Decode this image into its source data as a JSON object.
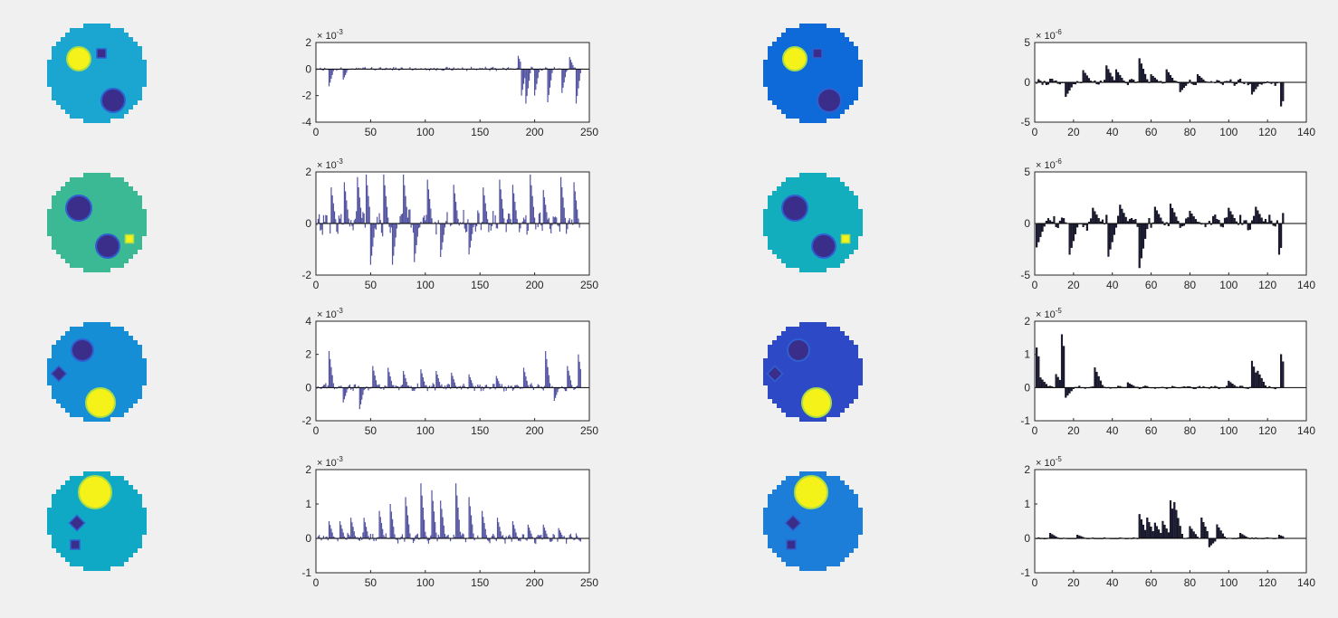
{
  "colors": {
    "figure_bg": "#f0f0f0",
    "axes_bg": "#ffffff",
    "axes_edge": "#262626",
    "phantom_inclusion_dark": "#3a2e8a",
    "phantom_inclusion_yellow": "#f5f21a",
    "bar_left": "#5353a0",
    "bar_right": "#1c1c3c"
  },
  "phantoms": [
    {
      "name": "phantom-1-left",
      "background": "#1aa6d1"
    },
    {
      "name": "phantom-1-right",
      "background": "#0e6ad8"
    },
    {
      "name": "phantom-2-left",
      "background": "#3bb894"
    },
    {
      "name": "phantom-2-right",
      "background": "#12aebe"
    },
    {
      "name": "phantom-3-left",
      "background": "#168ed6"
    },
    {
      "name": "phantom-3-right",
      "background": "#2e49c6"
    },
    {
      "name": "phantom-4-left",
      "background": "#0fa9c6"
    },
    {
      "name": "phantom-4-right",
      "background": "#1c7ed8"
    }
  ],
  "chart_data": [
    {
      "type": "bar",
      "name": "row1-left",
      "xlim": [
        0,
        250
      ],
      "ylim": [
        -4,
        2
      ],
      "exponent": "-3",
      "xticks": [
        "0",
        "50",
        "100",
        "150",
        "200",
        "250"
      ],
      "yticks": [
        "-4",
        "-2",
        "0",
        "2"
      ],
      "n": 242,
      "profile": {
        "base": [
          0.25,
          0.1
        ],
        "spikes": [
          [
            12,
            -1.3
          ],
          [
            25,
            -0.8
          ],
          [
            185,
            1.0
          ],
          [
            188,
            -2.0
          ],
          [
            192,
            -2.6
          ],
          [
            200,
            -2.0
          ],
          [
            212,
            -2.5
          ],
          [
            225,
            -1.8
          ],
          [
            232,
            0.9
          ],
          [
            238,
            -2.6
          ]
        ]
      }
    },
    {
      "type": "bar",
      "name": "row1-right",
      "xlim": [
        0,
        140
      ],
      "ylim": [
        -5,
        5
      ],
      "exponent": "-6",
      "xticks": [
        "0",
        "20",
        "40",
        "60",
        "80",
        "100",
        "120",
        "140"
      ],
      "yticks": [
        "-5",
        "0",
        "5"
      ],
      "n": 128,
      "profile": {
        "base": [
          0.6,
          0.3
        ],
        "spikes": [
          [
            16,
            -1.8
          ],
          [
            25,
            1.5
          ],
          [
            37,
            2.1
          ],
          [
            42,
            1.6
          ],
          [
            54,
            3.0
          ],
          [
            60,
            1.0
          ],
          [
            68,
            1.6
          ],
          [
            75,
            -1.2
          ],
          [
            84,
            1.0
          ],
          [
            112,
            -1.5
          ],
          [
            127,
            -3.0
          ]
        ]
      }
    },
    {
      "type": "bar",
      "name": "row2-left",
      "xlim": [
        0,
        250
      ],
      "ylim": [
        -2,
        2
      ],
      "exponent": "-3",
      "xticks": [
        "0",
        "50",
        "100",
        "150",
        "200",
        "250"
      ],
      "yticks": [
        "-2",
        "0",
        "2"
      ],
      "n": 242,
      "profile": {
        "base": [
          0.6,
          0.5
        ],
        "spikes": [
          [
            14,
            1.4
          ],
          [
            26,
            1.6
          ],
          [
            38,
            1.8
          ],
          [
            46,
            1.9
          ],
          [
            50,
            -1.6
          ],
          [
            62,
            1.9
          ],
          [
            70,
            -1.6
          ],
          [
            80,
            1.9
          ],
          [
            90,
            -1.5
          ],
          [
            102,
            1.7
          ],
          [
            114,
            -1.3
          ],
          [
            126,
            1.5
          ],
          [
            140,
            -1.2
          ],
          [
            153,
            1.4
          ],
          [
            168,
            1.7
          ],
          [
            180,
            1.5
          ],
          [
            196,
            1.9
          ],
          [
            208,
            1.3
          ],
          [
            224,
            1.8
          ],
          [
            236,
            1.6
          ]
        ]
      }
    },
    {
      "type": "bar",
      "name": "row2-right",
      "xlim": [
        0,
        140
      ],
      "ylim": [
        -5,
        5
      ],
      "exponent": "-6",
      "xticks": [
        "0",
        "20",
        "40",
        "60",
        "80",
        "100",
        "120",
        "140"
      ],
      "yticks": [
        "-5",
        "0",
        "5"
      ],
      "n": 128,
      "profile": {
        "base": [
          1.0,
          0.7
        ],
        "spikes": [
          [
            1,
            -2.3
          ],
          [
            18,
            -3.0
          ],
          [
            30,
            1.5
          ],
          [
            38,
            -3.2
          ],
          [
            44,
            1.8
          ],
          [
            54,
            -4.3
          ],
          [
            62,
            1.6
          ],
          [
            70,
            1.9
          ],
          [
            80,
            1.2
          ],
          [
            100,
            1.5
          ],
          [
            114,
            1.6
          ],
          [
            126,
            -3.0
          ],
          [
            128,
            1.0
          ]
        ]
      }
    },
    {
      "type": "bar",
      "name": "row3-left",
      "xlim": [
        0,
        250
      ],
      "ylim": [
        -2,
        4
      ],
      "exponent": "-3",
      "xticks": [
        "0",
        "50",
        "100",
        "150",
        "200",
        "250"
      ],
      "yticks": [
        "-2",
        "0",
        "2",
        "4"
      ],
      "n": 242,
      "profile": {
        "base": [
          0.35,
          0.2
        ],
        "spikes": [
          [
            12,
            2.2
          ],
          [
            25,
            -0.9
          ],
          [
            40,
            -1.3
          ],
          [
            52,
            1.3
          ],
          [
            66,
            1.2
          ],
          [
            80,
            1.0
          ],
          [
            96,
            1.1
          ],
          [
            110,
            1.0
          ],
          [
            124,
            0.9
          ],
          [
            140,
            0.8
          ],
          [
            165,
            0.7
          ],
          [
            190,
            1.2
          ],
          [
            210,
            2.2
          ],
          [
            218,
            -0.8
          ],
          [
            230,
            1.3
          ],
          [
            240,
            2.0
          ]
        ]
      }
    },
    {
      "type": "bar",
      "name": "row3-right",
      "xlim": [
        0,
        140
      ],
      "ylim": [
        -1,
        2
      ],
      "exponent": "-5",
      "xticks": [
        "0",
        "20",
        "40",
        "60",
        "80",
        "100",
        "120",
        "140"
      ],
      "yticks": [
        "-1",
        "0",
        "1",
        "2"
      ],
      "n": 128,
      "profile": {
        "base": [
          0.06,
          0.04
        ],
        "spikes": [
          [
            1,
            1.2
          ],
          [
            3,
            0.3
          ],
          [
            11,
            0.4
          ],
          [
            14,
            1.6
          ],
          [
            16,
            -0.3
          ],
          [
            31,
            0.6
          ],
          [
            48,
            0.15
          ],
          [
            100,
            0.2
          ],
          [
            112,
            0.8
          ],
          [
            115,
            0.5
          ],
          [
            127,
            1.0
          ]
        ]
      }
    },
    {
      "type": "bar",
      "name": "row4-left",
      "xlim": [
        0,
        250
      ],
      "ylim": [
        -1,
        2
      ],
      "exponent": "-3",
      "xticks": [
        "0",
        "50",
        "100",
        "150",
        "200",
        "250"
      ],
      "yticks": [
        "-1",
        "0",
        "1",
        "2"
      ],
      "n": 242,
      "profile": {
        "base": [
          0.2,
          0.15
        ],
        "spikes": [
          [
            12,
            0.5
          ],
          [
            22,
            0.5
          ],
          [
            32,
            0.6
          ],
          [
            44,
            0.6
          ],
          [
            58,
            0.8
          ],
          [
            68,
            1.0
          ],
          [
            82,
            1.2
          ],
          [
            96,
            1.6
          ],
          [
            106,
            1.4
          ],
          [
            114,
            1.1
          ],
          [
            128,
            1.6
          ],
          [
            140,
            1.2
          ],
          [
            152,
            0.8
          ],
          [
            166,
            0.6
          ],
          [
            180,
            0.5
          ],
          [
            194,
            0.4
          ],
          [
            208,
            0.4
          ],
          [
            222,
            0.3
          ]
        ]
      }
    },
    {
      "type": "bar",
      "name": "row4-right",
      "xlim": [
        0,
        140
      ],
      "ylim": [
        -1,
        2
      ],
      "exponent": "-5",
      "xticks": [
        "0",
        "20",
        "40",
        "60",
        "80",
        "100",
        "120",
        "140"
      ],
      "yticks": [
        "-1",
        "0",
        "1",
        "2"
      ],
      "n": 128,
      "profile": {
        "base": [
          0.03,
          0.02
        ],
        "spikes": [
          [
            8,
            0.15
          ],
          [
            22,
            0.1
          ],
          [
            54,
            0.7
          ],
          [
            58,
            0.6
          ],
          [
            62,
            0.45
          ],
          [
            66,
            0.5
          ],
          [
            70,
            1.1
          ],
          [
            72,
            1.05
          ],
          [
            80,
            0.35
          ],
          [
            86,
            0.6
          ],
          [
            90,
            -0.25
          ],
          [
            94,
            0.4
          ],
          [
            106,
            0.15
          ],
          [
            126,
            0.1
          ]
        ]
      }
    }
  ]
}
